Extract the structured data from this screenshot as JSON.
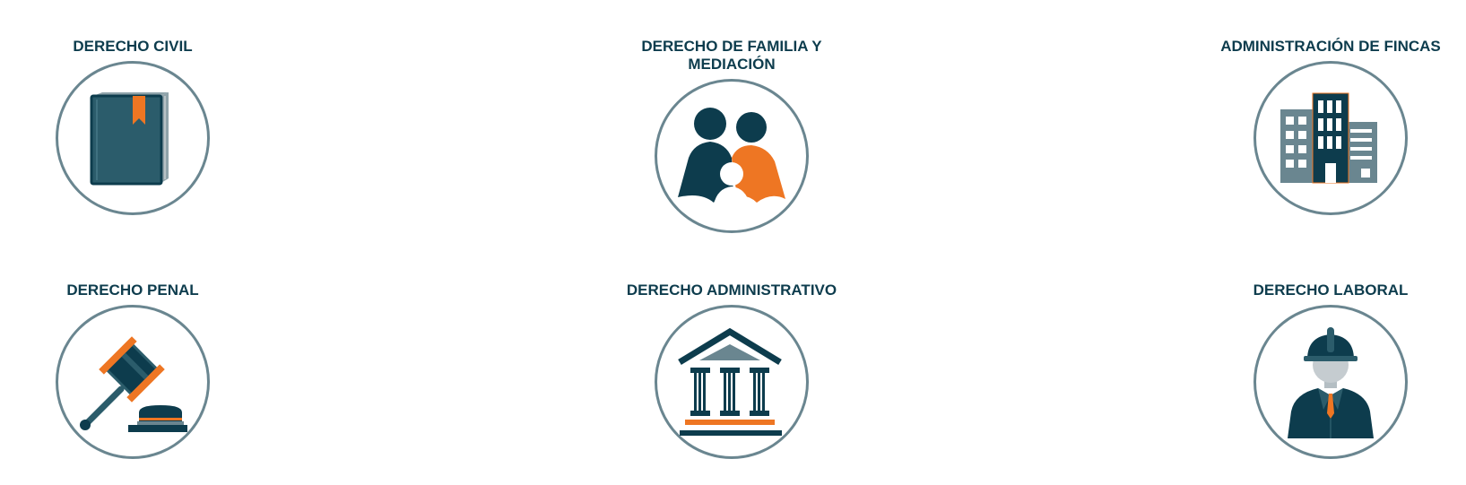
{
  "colors": {
    "title": "#0d3c4d",
    "circle_border": "#6a8690",
    "dark_teal": "#0d3c4d",
    "mid_teal": "#2b5c6b",
    "slate": "#6a8690",
    "orange": "#ee7623",
    "light_grey": "#c5ccd0"
  },
  "services": [
    {
      "title": "DERECHO CIVIL",
      "icon": "book-icon"
    },
    {
      "title": "DERECHO DE FAMILIA Y MEDIACIÓN",
      "icon": "family-icon"
    },
    {
      "title": "ADMINISTRACIÓN DE FINCAS",
      "icon": "buildings-icon"
    },
    {
      "title": "DERECHO PENAL",
      "icon": "gavel-icon"
    },
    {
      "title": "DERECHO ADMINISTRATIVO",
      "icon": "courthouse-icon"
    },
    {
      "title": "DERECHO LABORAL",
      "icon": "worker-icon"
    }
  ]
}
